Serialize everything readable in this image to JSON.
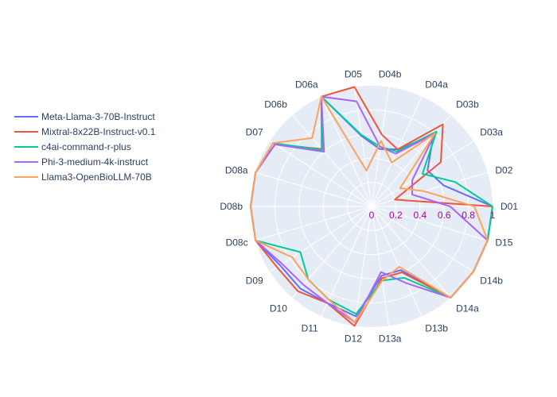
{
  "chart_data": {
    "type": "radar",
    "theta": [
      "D01",
      "D02",
      "D03a",
      "D03b",
      "D04a",
      "D04b",
      "D05",
      "D06a",
      "D06b",
      "D07",
      "D08a",
      "D08b",
      "D08c",
      "D09",
      "D10",
      "D11",
      "D12",
      "D13a",
      "D13b",
      "D14a",
      "D14b",
      "D15"
    ],
    "radial_ticks": [
      "0",
      "0.2",
      "0.4",
      "0.6",
      "0.8",
      "1"
    ],
    "radial_range": [
      0,
      1
    ],
    "legend_position": "left",
    "series": [
      {
        "name": "Meta-Llama-3-70B-Instruct",
        "color": "#636efa",
        "values": [
          1.0,
          0.62,
          0.55,
          0.78,
          0.52,
          0.48,
          0.59,
          1.0,
          0.62,
          0.95,
          1.0,
          1.0,
          1.0,
          0.9,
          0.9,
          0.88,
          0.92,
          0.58,
          0.58,
          1.0,
          1.0,
          1.0
        ]
      },
      {
        "name": "Mixtral-8x22B-Instruct-v0.1",
        "color": "#ef553b",
        "values": [
          1.0,
          0.2,
          0.68,
          0.9,
          0.52,
          0.6,
          1.0,
          1.0,
          0.63,
          0.95,
          1.0,
          1.0,
          1.0,
          0.93,
          0.93,
          0.88,
          1.0,
          0.6,
          0.6,
          1.0,
          1.0,
          1.0
        ]
      },
      {
        "name": "c4ai-command-r-plus",
        "color": "#00cc96",
        "values": [
          1.0,
          0.72,
          0.5,
          0.82,
          0.5,
          0.5,
          0.6,
          1.0,
          0.62,
          0.97,
          1.0,
          1.0,
          1.0,
          0.7,
          0.8,
          0.85,
          0.9,
          0.62,
          0.65,
          1.0,
          1.0,
          1.0
        ]
      },
      {
        "name": "Phi-3-medium-4k-instruct",
        "color": "#ab63fa",
        "values": [
          0.65,
          0.35,
          0.4,
          0.8,
          0.48,
          0.5,
          0.88,
          1.0,
          0.6,
          0.95,
          1.0,
          1.0,
          1.0,
          0.88,
          0.86,
          0.88,
          0.97,
          0.55,
          0.7,
          1.0,
          1.0,
          1.0
        ]
      },
      {
        "name": "Llama3-OpenBioLLM-70B",
        "color": "#ffa15a",
        "values": [
          0.85,
          0.45,
          0.28,
          0.8,
          0.4,
          0.55,
          0.3,
          1.0,
          0.75,
          0.97,
          1.0,
          1.0,
          1.0,
          0.78,
          0.8,
          0.85,
          0.97,
          0.62,
          0.55,
          1.0,
          1.0,
          1.0
        ]
      }
    ]
  }
}
